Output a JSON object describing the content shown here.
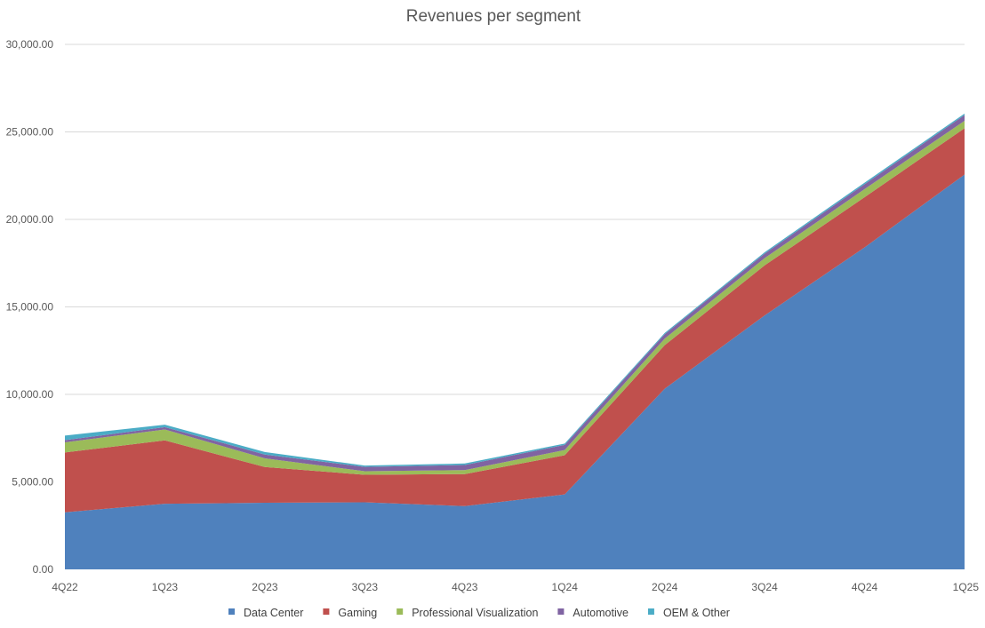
{
  "chart_data": {
    "type": "area",
    "stacked": true,
    "title": "Revenues per segment",
    "xlabel": "",
    "ylabel": "",
    "categories": [
      "4Q22",
      "1Q23",
      "2Q23",
      "3Q23",
      "4Q23",
      "1Q24",
      "2Q24",
      "3Q24",
      "4Q24",
      "1Q25"
    ],
    "ylim": [
      0,
      30000
    ],
    "yticks": [
      "0.00",
      "5,000.00",
      "10,000.00",
      "15,000.00",
      "20,000.00",
      "25,000.00",
      "30,000.00"
    ],
    "grid": true,
    "legend_position": "bottom",
    "series": [
      {
        "name": "Data Center",
        "color": "#4f81bd",
        "values": [
          3263,
          3750,
          3806,
          3833,
          3616,
          4284,
          10323,
          14514,
          18404,
          22563
        ]
      },
      {
        "name": "Gaming",
        "color": "#c0504d",
        "values": [
          3420,
          3620,
          2042,
          1574,
          1831,
          2240,
          2486,
          2856,
          2865,
          2647
        ]
      },
      {
        "name": "Professional Visualization",
        "color": "#9bbb59",
        "values": [
          577,
          622,
          496,
          200,
          226,
          295,
          379,
          416,
          463,
          427
        ]
      },
      {
        "name": "Automotive",
        "color": "#8064a2",
        "values": [
          125,
          138,
          220,
          251,
          294,
          296,
          253,
          261,
          281,
          329
        ]
      },
      {
        "name": "OEM & Other",
        "color": "#4bacc6",
        "values": [
          259,
          138,
          140,
          73,
          84,
          77,
          66,
          73,
          90,
          78
        ]
      }
    ]
  }
}
